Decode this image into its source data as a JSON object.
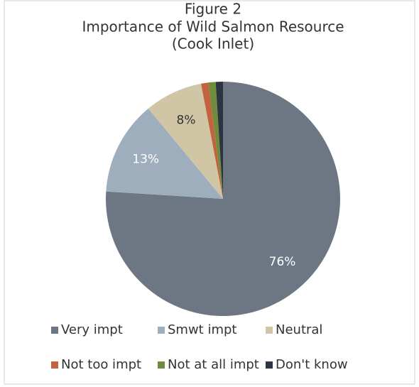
{
  "chart_data": {
    "type": "pie",
    "title": [
      "Figure 2",
      "Importance of Wild Salmon Resource",
      "(Cook Inlet)"
    ],
    "categories": [
      "Very impt",
      "Smwt impt",
      "Neutral",
      "Not too impt",
      "Not at all impt",
      "Don't know"
    ],
    "values": [
      76,
      13,
      8,
      1,
      1,
      1
    ],
    "value_labels": [
      "76%",
      "13%",
      "8%",
      null,
      null,
      null
    ],
    "colors": [
      "#6d7784",
      "#9eaebc",
      "#d0c6a6",
      "#c2623f",
      "#6f8c3c",
      "#2b3440"
    ],
    "label_colors": [
      "#ffffff",
      "#ffffff",
      "#333333",
      null,
      null,
      null
    ],
    "legend": "bottom"
  }
}
